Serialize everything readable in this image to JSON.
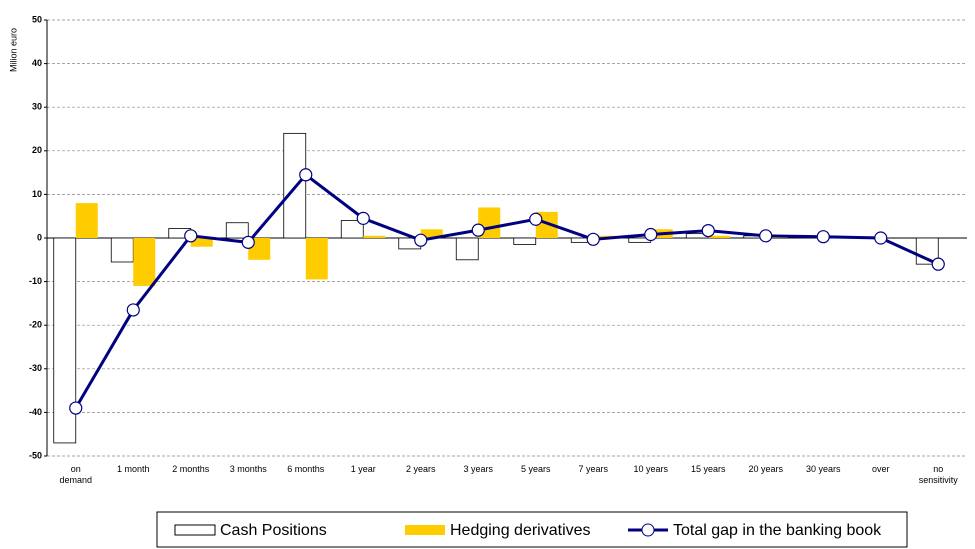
{
  "chart_data": {
    "type": "bar_line",
    "y_label": "Milion euro",
    "categories": [
      "on\ndemand",
      "1 month",
      "2 months",
      "3 months",
      "6 months",
      "1 year",
      "2 years",
      "3 years",
      "5 years",
      "7 years",
      "10 years",
      "15 years",
      "20 years",
      "30 years",
      "over",
      "no\nsensitivity"
    ],
    "series": [
      {
        "name": "Cash Positions",
        "type": "bar",
        "color": "#ffffff",
        "values": [
          -47,
          -5.5,
          2.2,
          3.5,
          24,
          4,
          -2.5,
          -5,
          -1.5,
          -1,
          -1,
          1,
          0.5,
          0.3,
          0,
          -6
        ]
      },
      {
        "name": "Hedging derivatives",
        "type": "bar",
        "color": "#ffcc00",
        "values": [
          8,
          -11,
          -2,
          -5,
          -9.5,
          0.5,
          2,
          7,
          6,
          0.5,
          2,
          0.5,
          0.3,
          0,
          0,
          0
        ]
      },
      {
        "name": "Total gap in the banking book",
        "type": "line",
        "color": "#000080",
        "values": [
          -39,
          -16.5,
          0.5,
          -1,
          14.5,
          4.5,
          -0.5,
          1.8,
          4.3,
          -0.3,
          0.8,
          1.7,
          0.5,
          0.3,
          0,
          -6
        ]
      }
    ],
    "ylim": [
      -50,
      50
    ],
    "yticks": [
      -50,
      -40,
      -30,
      -20,
      -10,
      0,
      10,
      20,
      30,
      40,
      50
    ],
    "grid": true
  }
}
